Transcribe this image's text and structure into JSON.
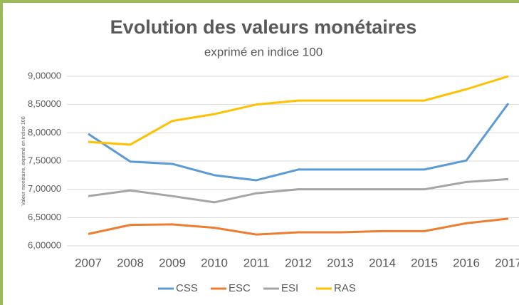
{
  "chart_data": {
    "type": "line",
    "title": "Evolution des valeurs monétaires",
    "subtitle": "exprimé en indice 100",
    "y_label": "Valeur monétaire, exprimé en indice 100",
    "categories": [
      "2007",
      "2008",
      "2009",
      "2010",
      "2011",
      "2012",
      "2013",
      "2014",
      "2015",
      "2016",
      "2017"
    ],
    "series": [
      {
        "name": "CSS",
        "color": "#5b9bd5",
        "values": [
          7.98,
          7.49,
          7.45,
          7.25,
          7.16,
          7.35,
          7.35,
          7.35,
          7.35,
          7.51,
          8.52
        ]
      },
      {
        "name": "ESC",
        "color": "#ed7d31",
        "values": [
          6.21,
          6.37,
          6.38,
          6.32,
          6.2,
          6.24,
          6.24,
          6.26,
          6.26,
          6.4,
          6.48
        ]
      },
      {
        "name": "ESI",
        "color": "#a5a5a5",
        "values": [
          6.88,
          6.98,
          6.88,
          6.77,
          6.93,
          7.0,
          7.0,
          7.0,
          7.0,
          7.13,
          7.18
        ]
      },
      {
        "name": "RAS",
        "color": "#ffc000",
        "values": [
          7.84,
          7.79,
          8.21,
          8.33,
          8.5,
          8.57,
          8.57,
          8.57,
          8.57,
          8.77,
          9.0
        ]
      }
    ],
    "ylim": [
      6,
      9
    ],
    "yticks": [
      {
        "value": 6,
        "label": "6,00000"
      },
      {
        "value": 6.5,
        "label": "6,50000"
      },
      {
        "value": 7,
        "label": "7,00000"
      },
      {
        "value": 7.5,
        "label": "7,50000"
      },
      {
        "value": 8,
        "label": "8,00000"
      },
      {
        "value": 8.5,
        "label": "8,50000"
      },
      {
        "value": 9,
        "label": "9,00000"
      }
    ],
    "grid": true,
    "legend": "bottom"
  }
}
